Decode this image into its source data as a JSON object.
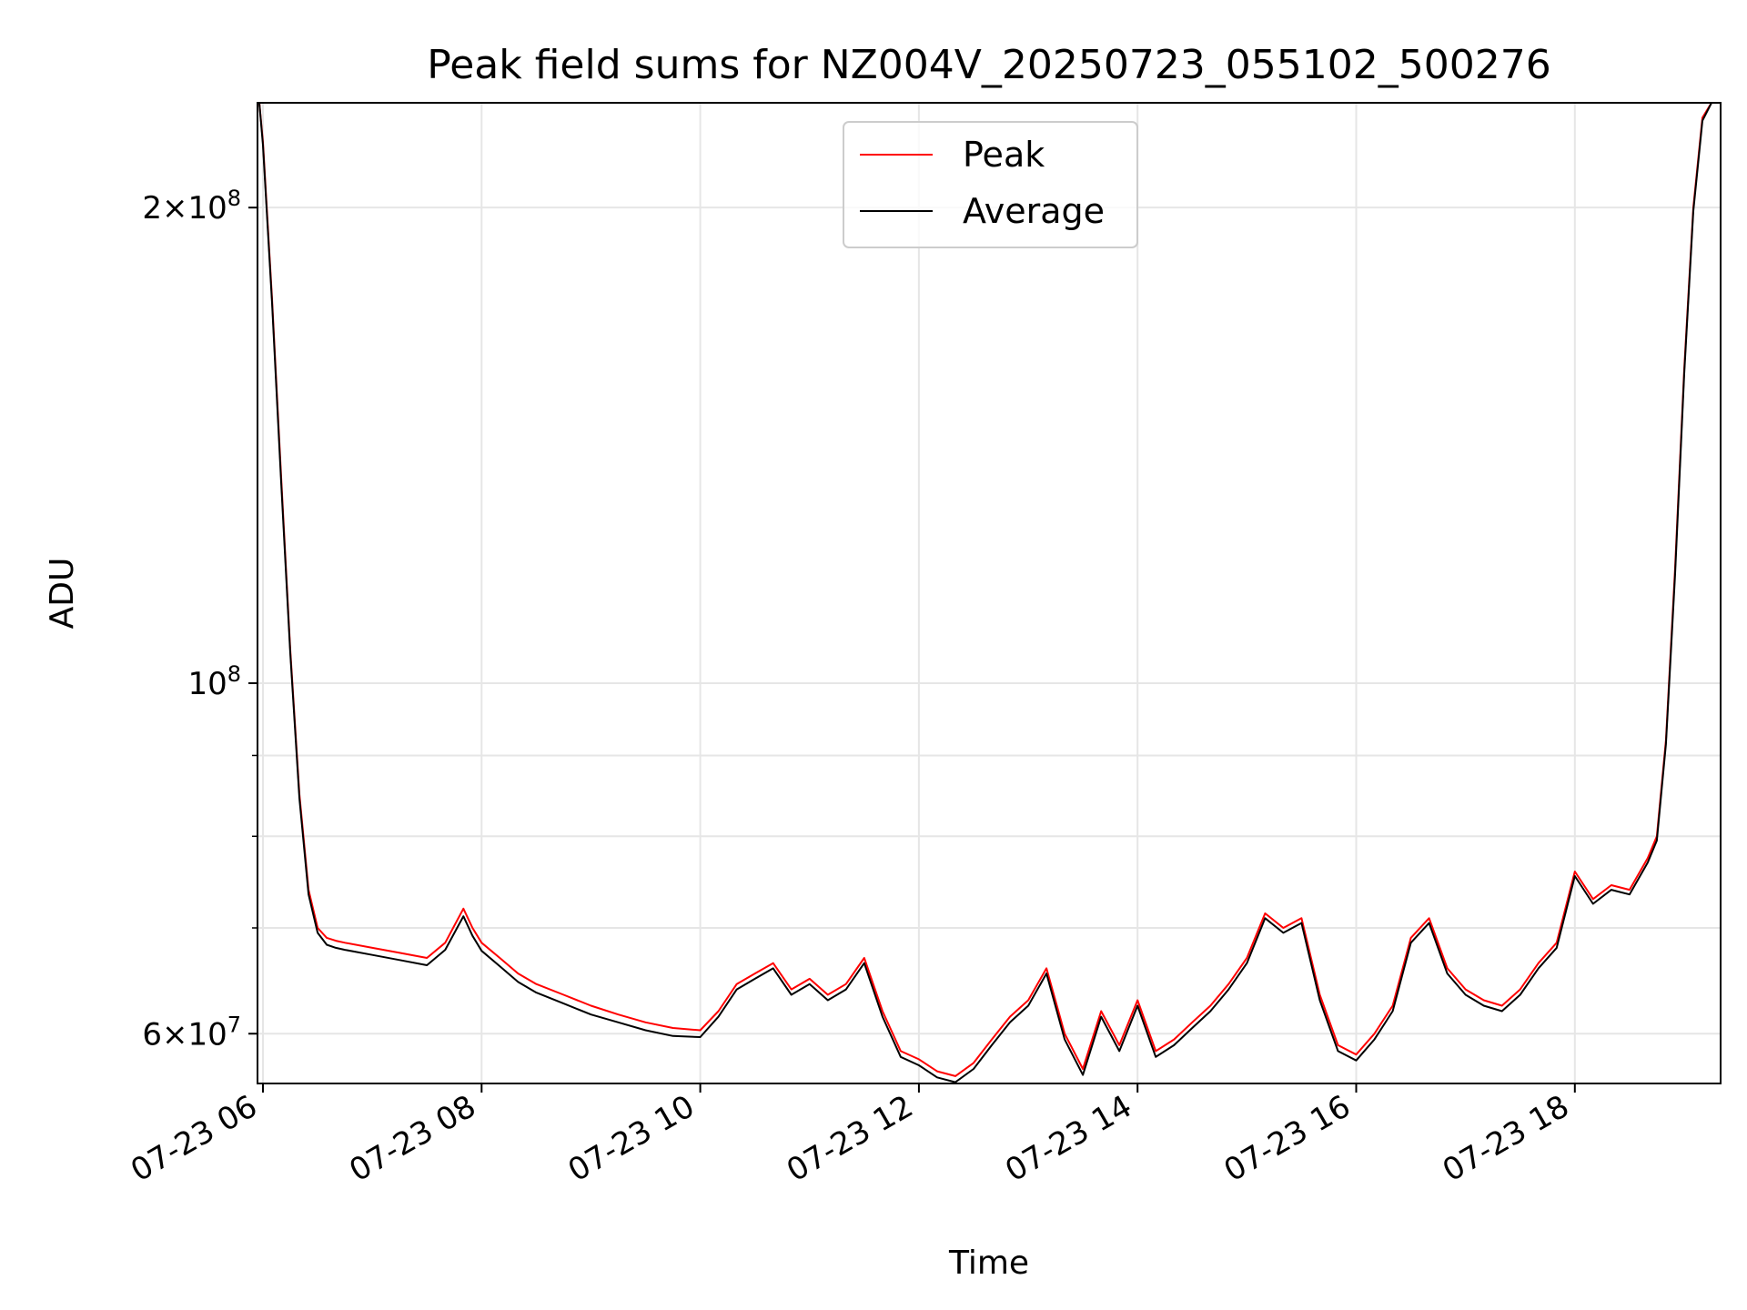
{
  "chart_data": {
    "type": "line",
    "title": "Peak field sums for NZ004V_20250723_055102_500276",
    "xlabel": "Time",
    "ylabel": "ADU",
    "y_scale": "log",
    "xlim": [
      "2025-07-23 05:57",
      "2025-07-23 19:20"
    ],
    "ylim": [
      55800000,
      233000000
    ],
    "grid": true,
    "legend_position": "top-center",
    "x_ticks": [
      "07-23 06",
      "07-23 08",
      "07-23 10",
      "07-23 12",
      "07-23 14",
      "07-23 16",
      "07-23 18"
    ],
    "y_ticks": [
      {
        "value": 200000000,
        "mantissa": "2",
        "exponent": "8"
      },
      {
        "value": 100000000,
        "mantissa": "",
        "exponent": "8"
      },
      {
        "value": 60000000,
        "mantissa": "6",
        "exponent": "7"
      }
    ],
    "x": [
      "05:58",
      "06:00",
      "06:05",
      "06:10",
      "06:15",
      "06:20",
      "06:25",
      "06:30",
      "06:35",
      "06:40",
      "06:45",
      "07:00",
      "07:15",
      "07:30",
      "07:40",
      "07:50",
      "07:55",
      "08:00",
      "08:10",
      "08:20",
      "08:30",
      "08:45",
      "09:00",
      "09:15",
      "09:30",
      "09:45",
      "10:00",
      "10:10",
      "10:20",
      "10:30",
      "10:40",
      "10:50",
      "11:00",
      "11:10",
      "11:20",
      "11:30",
      "11:40",
      "11:50",
      "12:00",
      "12:10",
      "12:20",
      "12:30",
      "12:40",
      "12:50",
      "13:00",
      "13:10",
      "13:20",
      "13:30",
      "13:40",
      "13:50",
      "14:00",
      "14:10",
      "14:20",
      "14:30",
      "14:40",
      "14:50",
      "15:00",
      "15:10",
      "15:20",
      "15:30",
      "15:40",
      "15:50",
      "16:00",
      "16:10",
      "16:20",
      "16:30",
      "16:40",
      "16:50",
      "17:00",
      "17:10",
      "17:20",
      "17:30",
      "17:40",
      "17:50",
      "18:00",
      "18:10",
      "18:20",
      "18:30",
      "18:40",
      "18:45",
      "18:50",
      "18:55",
      "19:00",
      "19:05",
      "19:10",
      "19:15"
    ],
    "series": [
      {
        "name": "Peak",
        "color": "#ff0000",
        "values": [
          233000000,
          220000000,
          175000000,
          135000000,
          105000000,
          85000000,
          74000000,
          70000000,
          69000000,
          68700000,
          68500000,
          68000000,
          67500000,
          67000000,
          68500000,
          72000000,
          70000000,
          68500000,
          67000000,
          65500000,
          64500000,
          63500000,
          62500000,
          61700000,
          61000000,
          60500000,
          60300000,
          62000000,
          64500000,
          65500000,
          66500000,
          64000000,
          65000000,
          63500000,
          64500000,
          67000000,
          62000000,
          58500000,
          57800000,
          56800000,
          56400000,
          57500000,
          59500000,
          61500000,
          63000000,
          66000000,
          60000000,
          57000000,
          62000000,
          59000000,
          63000000,
          58500000,
          59500000,
          61000000,
          62500000,
          64500000,
          67000000,
          71500000,
          70000000,
          71000000,
          63500000,
          59000000,
          58200000,
          60000000,
          62500000,
          69000000,
          71000000,
          66000000,
          64000000,
          63000000,
          62500000,
          64000000,
          66500000,
          68500000,
          76000000,
          73000000,
          74500000,
          74000000,
          77500000,
          80000000,
          92000000,
          118000000,
          158000000,
          200000000,
          228000000,
          233000000
        ]
      },
      {
        "name": "Average",
        "color": "#000000",
        "values": [
          233000000,
          219000000,
          174000000,
          134000000,
          104500000,
          84500000,
          73500000,
          69500000,
          68300000,
          68000000,
          67800000,
          67300000,
          66800000,
          66300000,
          67800000,
          71200000,
          69200000,
          67700000,
          66200000,
          64700000,
          63700000,
          62700000,
          61700000,
          61000000,
          60300000,
          59800000,
          59700000,
          61500000,
          64000000,
          65000000,
          66000000,
          63500000,
          64500000,
          63000000,
          64000000,
          66500000,
          61500000,
          58000000,
          57300000,
          56300000,
          55900000,
          57000000,
          59000000,
          61000000,
          62500000,
          65500000,
          59500000,
          56500000,
          61500000,
          58500000,
          62500000,
          58000000,
          59000000,
          60500000,
          62000000,
          64000000,
          66500000,
          71000000,
          69500000,
          70500000,
          63000000,
          58500000,
          57700000,
          59500000,
          62000000,
          68500000,
          70500000,
          65500000,
          63500000,
          62500000,
          62000000,
          63500000,
          66000000,
          68000000,
          75500000,
          72500000,
          74000000,
          73500000,
          77000000,
          79500000,
          91500000,
          117000000,
          157000000,
          199000000,
          227000000,
          233000000
        ]
      }
    ]
  }
}
